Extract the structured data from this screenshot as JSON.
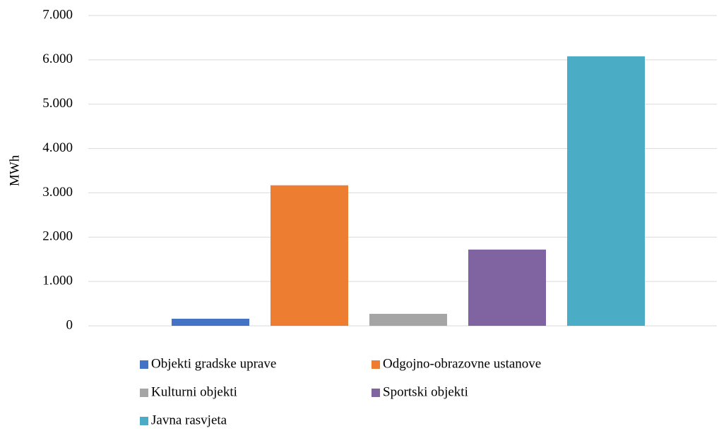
{
  "chart_data": {
    "type": "bar",
    "ylabel": "MWh",
    "categories": [
      null
    ],
    "series": [
      {
        "name": "Objekti gradske uprave",
        "color": "#4472c4",
        "values": [
          160
        ]
      },
      {
        "name": "Odgojno-obrazovne ustanove",
        "color": "#ed7d31",
        "values": [
          3170
        ]
      },
      {
        "name": "Kulturni objekti",
        "color": "#a5a5a5",
        "values": [
          270
        ]
      },
      {
        "name": "Sportski objekti",
        "color": "#8064a2",
        "values": [
          1720
        ]
      },
      {
        "name": "Javna rasvjeta",
        "color": "#4bacc6",
        "values": [
          6080
        ]
      }
    ],
    "ylim": [
      0,
      7000
    ],
    "yticks": [
      0,
      {
        "value": 1000,
        "label": "1.000"
      },
      {
        "value": 2000,
        "label": "2.000"
      },
      {
        "value": 3000,
        "label": "3.000"
      },
      {
        "value": 4000,
        "label": "4.000"
      },
      {
        "value": 5000,
        "label": "5.000"
      },
      {
        "value": 6000,
        "label": "6.000"
      },
      {
        "value": 7000,
        "label": "7.000"
      }
    ],
    "grid": true,
    "legend": "bottom"
  }
}
